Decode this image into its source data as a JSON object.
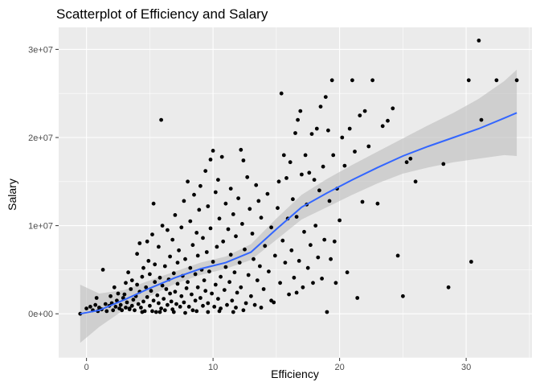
{
  "chart_data": {
    "type": "scatter",
    "title": "Scatterplot of Efficiency and Salary",
    "xlabel": "Efficiency",
    "ylabel": "Salary",
    "xlim": [
      -2.2,
      35.2
    ],
    "ylim": [
      -5000000,
      32500000
    ],
    "x_ticks": [
      {
        "value": 0,
        "label": "0"
      },
      {
        "value": 10,
        "label": "10"
      },
      {
        "value": 20,
        "label": "20"
      },
      {
        "value": 30,
        "label": "30"
      }
    ],
    "y_ticks": [
      {
        "value": 0,
        "label": "0e+00"
      },
      {
        "value": 10000000,
        "label": "1e+07"
      },
      {
        "value": 20000000,
        "label": "2e+07"
      },
      {
        "value": 30000000,
        "label": "3e+07"
      }
    ],
    "grid": true,
    "panel_background": "#ebebeb",
    "point_color": "#000000",
    "smooth_color": "#3366ff",
    "ribbon_color": "#bdbdbd",
    "points": [
      [
        -0.5,
        0.0
      ],
      [
        0.0,
        600000
      ],
      [
        0.3,
        800000
      ],
      [
        0.5,
        400000
      ],
      [
        0.7,
        1000000
      ],
      [
        0.9,
        300000
      ],
      [
        1.0,
        700000
      ],
      [
        1.2,
        500000
      ],
      [
        1.3,
        5000000
      ],
      [
        1.5,
        1100000
      ],
      [
        1.6,
        300000
      ],
      [
        1.8,
        900000
      ],
      [
        2.0,
        1200000
      ],
      [
        2.1,
        400000
      ],
      [
        2.2,
        3000000
      ],
      [
        2.3,
        800000
      ],
      [
        2.4,
        1500000
      ],
      [
        2.5,
        2300000
      ],
      [
        2.6,
        600000
      ],
      [
        2.7,
        1000000
      ],
      [
        2.8,
        400000
      ],
      [
        2.9,
        1800000
      ],
      [
        3.0,
        2200000
      ],
      [
        3.1,
        3500000
      ],
      [
        3.1,
        700000
      ],
      [
        3.2,
        1300000
      ],
      [
        3.3,
        4700000
      ],
      [
        3.4,
        500000
      ],
      [
        3.5,
        2800000
      ],
      [
        3.6,
        3800000
      ],
      [
        3.6,
        900000
      ],
      [
        3.7,
        1600000
      ],
      [
        3.8,
        400000
      ],
      [
        3.9,
        2000000
      ],
      [
        4.0,
        6800000
      ],
      [
        4.0,
        3300000
      ],
      [
        4.1,
        1100000
      ],
      [
        4.2,
        8000000
      ],
      [
        4.2,
        2500000
      ],
      [
        4.3,
        700000
      ],
      [
        4.4,
        4200000
      ],
      [
        4.5,
        5200000
      ],
      [
        4.5,
        1400000
      ],
      [
        4.6,
        300000
      ],
      [
        4.7,
        3000000
      ],
      [
        4.8,
        8200000
      ],
      [
        4.8,
        1900000
      ],
      [
        4.9,
        6000000
      ],
      [
        5.0,
        4500000
      ],
      [
        5.0,
        900000
      ],
      [
        5.1,
        2600000
      ],
      [
        5.2,
        9000000
      ],
      [
        5.2,
        300000
      ],
      [
        5.3,
        12500000
      ],
      [
        5.3,
        1500000
      ],
      [
        5.4,
        5600000
      ],
      [
        5.4,
        3600000
      ],
      [
        5.5,
        200000
      ],
      [
        5.6,
        2100000
      ],
      [
        5.7,
        7600000
      ],
      [
        5.7,
        1200000
      ],
      [
        5.8,
        4100000
      ],
      [
        5.9,
        22000000
      ],
      [
        5.9,
        600000
      ],
      [
        6.0,
        10000000
      ],
      [
        6.0,
        3200000
      ],
      [
        6.1,
        1700000
      ],
      [
        6.2,
        5400000
      ],
      [
        6.2,
        400000
      ],
      [
        6.3,
        2800000
      ],
      [
        6.4,
        9500000
      ],
      [
        6.4,
        1000000
      ],
      [
        6.5,
        3900000
      ],
      [
        6.6,
        6500000
      ],
      [
        6.6,
        2300000
      ],
      [
        6.7,
        1400000
      ],
      [
        6.8,
        8400000
      ],
      [
        6.8,
        500000
      ],
      [
        6.9,
        4600000
      ],
      [
        7.0,
        11200000
      ],
      [
        7.0,
        2500000
      ],
      [
        7.1,
        1100000
      ],
      [
        7.2,
        5800000
      ],
      [
        7.2,
        3400000
      ],
      [
        7.3,
        7200000
      ],
      [
        7.4,
        800000
      ],
      [
        7.5,
        9800000
      ],
      [
        7.5,
        2000000
      ],
      [
        7.6,
        4300000
      ],
      [
        7.7,
        12800000
      ],
      [
        7.7,
        1300000
      ],
      [
        7.8,
        6200000
      ],
      [
        7.9,
        2900000
      ],
      [
        8.0,
        15000000
      ],
      [
        8.0,
        3600000
      ],
      [
        8.1,
        800000
      ],
      [
        8.2,
        10500000
      ],
      [
        8.2,
        5200000
      ],
      [
        8.3,
        2200000
      ],
      [
        8.4,
        7800000
      ],
      [
        8.4,
        400000
      ],
      [
        8.5,
        13500000
      ],
      [
        8.6,
        4500000
      ],
      [
        8.6,
        1500000
      ],
      [
        8.7,
        9200000
      ],
      [
        8.8,
        3000000
      ],
      [
        8.8,
        6600000
      ],
      [
        8.9,
        11800000
      ],
      [
        9.0,
        1800000
      ],
      [
        9.0,
        14500000
      ],
      [
        9.1,
        5000000
      ],
      [
        9.2,
        8600000
      ],
      [
        9.2,
        900000
      ],
      [
        9.3,
        3800000
      ],
      [
        9.4,
        16200000
      ],
      [
        9.4,
        2600000
      ],
      [
        9.5,
        7000000
      ],
      [
        9.6,
        12200000
      ],
      [
        9.6,
        1200000
      ],
      [
        9.7,
        4800000
      ],
      [
        9.8,
        17500000
      ],
      [
        9.8,
        9700000
      ],
      [
        9.9,
        2300000
      ],
      [
        10.0,
        18500000
      ],
      [
        10.0,
        5900000
      ],
      [
        10.1,
        800000
      ],
      [
        10.2,
        13800000
      ],
      [
        10.2,
        3300000
      ],
      [
        10.3,
        7600000
      ],
      [
        10.4,
        15200000
      ],
      [
        10.4,
        1700000
      ],
      [
        10.5,
        10800000
      ],
      [
        10.6,
        4200000
      ],
      [
        10.6,
        600000
      ],
      [
        10.7,
        17800000
      ],
      [
        10.8,
        8200000
      ],
      [
        10.9,
        2700000
      ],
      [
        11.0,
        12500000
      ],
      [
        11.0,
        5300000
      ],
      [
        11.1,
        1000000
      ],
      [
        11.2,
        9600000
      ],
      [
        11.3,
        3600000
      ],
      [
        11.4,
        14200000
      ],
      [
        11.4,
        6700000
      ],
      [
        11.5,
        1500000
      ],
      [
        11.6,
        11300000
      ],
      [
        11.7,
        4700000
      ],
      [
        11.8,
        8800000
      ],
      [
        11.8,
        700000
      ],
      [
        11.9,
        2400000
      ],
      [
        12.0,
        13100000
      ],
      [
        12.1,
        5800000
      ],
      [
        12.2,
        18600000
      ],
      [
        12.2,
        3000000
      ],
      [
        12.3,
        10200000
      ],
      [
        12.4,
        17400000
      ],
      [
        12.5,
        7300000
      ],
      [
        12.6,
        1200000
      ],
      [
        12.7,
        15500000
      ],
      [
        12.8,
        4400000
      ],
      [
        12.9,
        11900000
      ],
      [
        13.0,
        2000000
      ],
      [
        13.1,
        9100000
      ],
      [
        13.2,
        6200000
      ],
      [
        13.3,
        1000000
      ],
      [
        13.4,
        14600000
      ],
      [
        13.5,
        3800000
      ],
      [
        13.6,
        12800000
      ],
      [
        13.7,
        5400000
      ],
      [
        13.8,
        10900000
      ],
      [
        14.0,
        2800000
      ],
      [
        14.1,
        7700000
      ],
      [
        14.3,
        13600000
      ],
      [
        14.4,
        4800000
      ],
      [
        14.6,
        9800000
      ],
      [
        14.8,
        1300000
      ],
      [
        14.9,
        6600000
      ],
      [
        15.1,
        12000000
      ],
      [
        15.2,
        15000000
      ],
      [
        15.3,
        3500000
      ],
      [
        15.4,
        25000000
      ],
      [
        15.5,
        8300000
      ],
      [
        15.6,
        18000000
      ],
      [
        15.7,
        5800000
      ],
      [
        15.8,
        15400000
      ],
      [
        15.9,
        10800000
      ],
      [
        16.0,
        2200000
      ],
      [
        16.1,
        17200000
      ],
      [
        16.2,
        7200000
      ],
      [
        16.3,
        13000000
      ],
      [
        16.4,
        4100000
      ],
      [
        16.5,
        20500000
      ],
      [
        16.6,
        11000000
      ],
      [
        16.7,
        22000000
      ],
      [
        16.8,
        6000000
      ],
      [
        16.9,
        23000000
      ],
      [
        17.0,
        15800000
      ],
      [
        17.1,
        3000000
      ],
      [
        17.2,
        9300000
      ],
      [
        17.3,
        18000000
      ],
      [
        17.4,
        12400000
      ],
      [
        17.5,
        5200000
      ],
      [
        17.6,
        16000000
      ],
      [
        17.7,
        7800000
      ],
      [
        17.8,
        20400000
      ],
      [
        17.9,
        3500000
      ],
      [
        18.0,
        15200000
      ],
      [
        18.1,
        10000000
      ],
      [
        18.2,
        21000000
      ],
      [
        18.3,
        6400000
      ],
      [
        18.4,
        14000000
      ],
      [
        18.5,
        23500000
      ],
      [
        18.6,
        4000000
      ],
      [
        18.7,
        16700000
      ],
      [
        18.8,
        8400000
      ],
      [
        18.9,
        24600000
      ],
      [
        19.0,
        200000
      ],
      [
        19.1,
        20800000
      ],
      [
        19.2,
        12800000
      ],
      [
        19.3,
        6200000
      ],
      [
        19.4,
        26500000
      ],
      [
        19.5,
        18000000
      ],
      [
        19.6,
        8200000
      ],
      [
        19.7,
        3500000
      ],
      [
        19.8,
        14200000
      ],
      [
        20.0,
        10600000
      ],
      [
        20.2,
        20000000
      ],
      [
        20.4,
        16800000
      ],
      [
        20.6,
        4700000
      ],
      [
        20.8,
        21000000
      ],
      [
        21.0,
        26500000
      ],
      [
        21.2,
        18400000
      ],
      [
        21.4,
        1800000
      ],
      [
        21.6,
        22500000
      ],
      [
        21.8,
        12700000
      ],
      [
        22.0,
        23000000
      ],
      [
        22.3,
        19000000
      ],
      [
        22.6,
        26500000
      ],
      [
        23.0,
        12500000
      ],
      [
        23.4,
        21300000
      ],
      [
        23.8,
        21900000
      ],
      [
        24.2,
        23300000
      ],
      [
        24.6,
        6600000
      ],
      [
        25.0,
        2000000
      ],
      [
        25.3,
        17200000
      ],
      [
        25.6,
        17600000
      ],
      [
        26.0,
        15000000
      ],
      [
        28.2,
        17000000
      ],
      [
        28.6,
        3000000
      ],
      [
        30.2,
        26500000
      ],
      [
        30.4,
        5900000
      ],
      [
        31.0,
        31000000
      ],
      [
        31.2,
        22000000
      ],
      [
        32.4,
        26500000
      ],
      [
        34.0,
        26500000
      ],
      [
        0.8,
        1800000
      ],
      [
        1.9,
        2000000
      ],
      [
        3.4,
        600000
      ],
      [
        4.4,
        200000
      ],
      [
        5.8,
        200000
      ],
      [
        6.9,
        200000
      ],
      [
        7.8,
        100000
      ],
      [
        8.7,
        300000
      ],
      [
        9.6,
        200000
      ],
      [
        10.5,
        300000
      ],
      [
        11.6,
        200000
      ],
      [
        12.4,
        400000
      ],
      [
        13.8,
        700000
      ],
      [
        14.6,
        1500000
      ],
      [
        16.6,
        2400000
      ]
    ],
    "smooth": [
      [
        -0.5,
        0
      ],
      [
        1.0,
        400000
      ],
      [
        3.0,
        1600000
      ],
      [
        5.0,
        2900000
      ],
      [
        7.0,
        4100000
      ],
      [
        9.0,
        5100000
      ],
      [
        11.0,
        5800000
      ],
      [
        13.0,
        7000000
      ],
      [
        15.0,
        9600000
      ],
      [
        17.0,
        12100000
      ],
      [
        19.0,
        13700000
      ],
      [
        21.0,
        15200000
      ],
      [
        23.0,
        16600000
      ],
      [
        25.0,
        17900000
      ],
      [
        27.0,
        19000000
      ],
      [
        29.0,
        20000000
      ],
      [
        31.0,
        21000000
      ],
      [
        33.0,
        22200000
      ],
      [
        34.0,
        22800000
      ]
    ],
    "ribbon_upper": [
      [
        -0.5,
        3300000
      ],
      [
        1.0,
        2300000
      ],
      [
        3.0,
        2700000
      ],
      [
        5.0,
        3800000
      ],
      [
        7.0,
        4800000
      ],
      [
        9.0,
        5800000
      ],
      [
        11.0,
        6500000
      ],
      [
        13.0,
        7900000
      ],
      [
        15.0,
        10800000
      ],
      [
        17.0,
        13500000
      ],
      [
        19.0,
        15300000
      ],
      [
        21.0,
        16900000
      ],
      [
        23.0,
        18400000
      ],
      [
        25.0,
        19900000
      ],
      [
        27.0,
        21400000
      ],
      [
        29.0,
        22800000
      ],
      [
        31.0,
        24400000
      ],
      [
        33.0,
        26400000
      ],
      [
        34.0,
        27700000
      ]
    ],
    "ribbon_lower": [
      [
        -0.5,
        -3300000
      ],
      [
        1.0,
        -1500000
      ],
      [
        3.0,
        500000
      ],
      [
        5.0,
        2000000
      ],
      [
        7.0,
        3400000
      ],
      [
        9.0,
        4400000
      ],
      [
        11.0,
        5100000
      ],
      [
        13.0,
        6100000
      ],
      [
        15.0,
        8400000
      ],
      [
        17.0,
        10700000
      ],
      [
        19.0,
        12100000
      ],
      [
        21.0,
        13500000
      ],
      [
        23.0,
        14800000
      ],
      [
        25.0,
        15900000
      ],
      [
        27.0,
        16600000
      ],
      [
        29.0,
        17200000
      ],
      [
        31.0,
        17600000
      ],
      [
        33.0,
        18000000
      ],
      [
        34.0,
        17900000
      ]
    ]
  }
}
